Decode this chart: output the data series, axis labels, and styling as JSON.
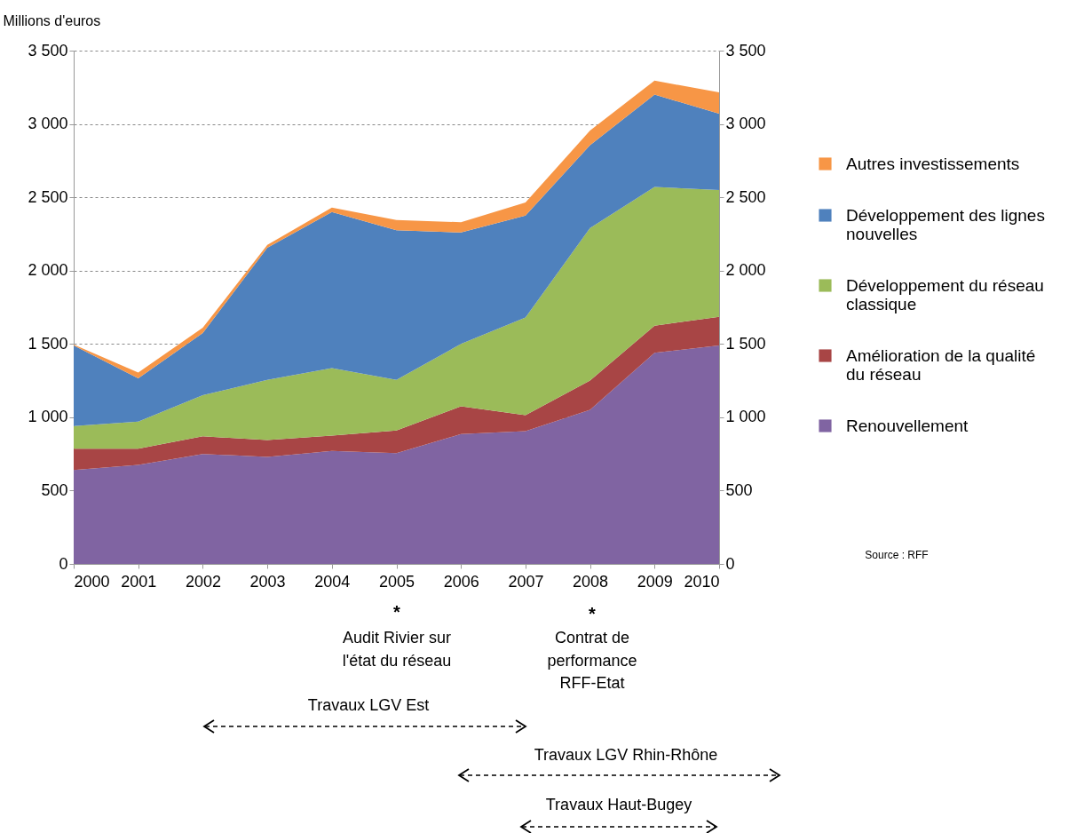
{
  "chart_data": {
    "type": "area",
    "stacked": true,
    "ylabel": "Millions d'euros",
    "x": [
      2000,
      2001,
      2002,
      2003,
      2004,
      2005,
      2006,
      2007,
      2008,
      2009,
      2010
    ],
    "xlim": [
      2000,
      2010
    ],
    "xticks": [
      2000,
      2001,
      2002,
      2003,
      2004,
      2005,
      2006,
      2007,
      2008,
      2009,
      2010
    ],
    "ylim": [
      0,
      3500
    ],
    "yticks": [
      0,
      500,
      {
        "value": 1000,
        "label": "1 000"
      },
      {
        "value": 1500,
        "label": "1 500"
      },
      {
        "value": 2000,
        "label": "2 000"
      },
      {
        "value": 2500,
        "label": "2 500"
      },
      {
        "value": 3000,
        "label": "3 000"
      },
      {
        "value": 3500,
        "label": "3 500"
      }
    ],
    "y2lim": [
      0,
      3500
    ],
    "y2ticks": [
      0,
      500,
      {
        "value": 1000,
        "label": "1 000"
      },
      {
        "value": 1500,
        "label": "1 500"
      },
      {
        "value": 2000,
        "label": "2 000"
      },
      {
        "value": 2500,
        "label": "2 500"
      },
      {
        "value": 3000,
        "label": "3 000"
      },
      {
        "value": 3500,
        "label": "3 500"
      }
    ],
    "grid": "y",
    "legend": "right",
    "series": [
      {
        "name": "Renouvellement",
        "color": "#8064a2",
        "values": [
          640,
          675,
          750,
          730,
          770,
          755,
          885,
          905,
          1050,
          1440,
          1490
        ]
      },
      {
        "name": "Amélioration de la qualité du réseau",
        "color": "#a84545",
        "values": [
          145,
          110,
          120,
          115,
          105,
          155,
          190,
          110,
          200,
          185,
          195
        ]
      },
      {
        "name": "Développement du réseau classique",
        "color": "#9bbb59",
        "values": [
          155,
          185,
          280,
          410,
          460,
          345,
          425,
          665,
          1040,
          945,
          865
        ]
      },
      {
        "name": "Développement des lignes nouvelles",
        "color": "#4f81bd",
        "values": [
          550,
          295,
          425,
          900,
          1065,
          1020,
          760,
          695,
          565,
          630,
          520
        ]
      },
      {
        "name": "Autres investissements",
        "color": "#f79646",
        "values": [
          5,
          40,
          35,
          20,
          30,
          70,
          70,
          90,
          100,
          95,
          145
        ]
      }
    ],
    "annotations": [
      "*",
      "Audit Rivier sur l'état du réseau",
      "*",
      "Contrat de performance RFF-Etat",
      "Travaux LGV Est",
      "Travaux LGV Rhin-Rhône",
      "Travaux Haut-Bugey",
      "Source : RFF"
    ]
  }
}
